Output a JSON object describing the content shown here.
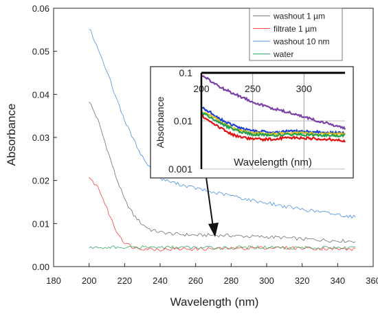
{
  "chart_data": [
    {
      "type": "line",
      "xlabel": "Wavelength (nm)",
      "ylabel": "Absorbance",
      "xlim": [
        180,
        360
      ],
      "ylim": [
        0,
        0.06
      ],
      "xticks": [
        "180",
        "200",
        "220",
        "240",
        "260",
        "280",
        "300",
        "320",
        "340",
        "360"
      ],
      "yticks": [
        "0.00",
        "0.01",
        "0.02",
        "0.03",
        "0.04",
        "0.05",
        "0.06"
      ],
      "grid": false,
      "legend_position": "top-right",
      "series": [
        {
          "name": "washout 1 µm",
          "color": "#6e6e6e",
          "x": [
            200,
            205,
            210,
            215,
            220,
            225,
            230,
            235,
            240,
            245,
            250,
            260,
            270,
            280,
            290,
            300,
            310,
            320,
            330,
            340,
            350
          ],
          "y": [
            0.0385,
            0.034,
            0.0275,
            0.021,
            0.0155,
            0.012,
            0.0098,
            0.0085,
            0.008,
            0.0077,
            0.0075,
            0.0073,
            0.0073,
            0.0072,
            0.007,
            0.0069,
            0.0067,
            0.0064,
            0.0062,
            0.006,
            0.0059
          ]
        },
        {
          "name": "filtrate 1 µm",
          "color": "#ff4040",
          "x": [
            200,
            205,
            210,
            215,
            220,
            225,
            230,
            240,
            250,
            260,
            280,
            300,
            320,
            340,
            350
          ],
          "y": [
            0.0205,
            0.0185,
            0.0135,
            0.0085,
            0.0055,
            0.0045,
            0.0042,
            0.004,
            0.0041,
            0.0041,
            0.0042,
            0.0044,
            0.0043,
            0.0041,
            0.004
          ]
        },
        {
          "name": "washout 10 nm",
          "color": "#4a90e2",
          "x": [
            200,
            205,
            210,
            215,
            220,
            225,
            230,
            235,
            240,
            245,
            250,
            260,
            270,
            280,
            290,
            300,
            310,
            320,
            330,
            340,
            350
          ],
          "y": [
            0.0555,
            0.0505,
            0.0455,
            0.0395,
            0.034,
            0.0295,
            0.0255,
            0.0225,
            0.0205,
            0.0198,
            0.0192,
            0.0182,
            0.0172,
            0.0165,
            0.0155,
            0.0148,
            0.014,
            0.0133,
            0.0127,
            0.0121,
            0.0115
          ]
        },
        {
          "name": "water",
          "color": "#33aa66",
          "x": [
            200,
            210,
            220,
            240,
            260,
            280,
            300,
            320,
            340,
            350
          ],
          "y": [
            0.0044,
            0.0045,
            0.0044,
            0.0045,
            0.0044,
            0.0044,
            0.0045,
            0.0044,
            0.0044,
            0.0043
          ]
        }
      ]
    },
    {
      "type": "line",
      "log_y": true,
      "xlabel": "Wavelength  (nm)",
      "ylabel": "Absorbance",
      "xlim": [
        200,
        340
      ],
      "ylim": [
        0.001,
        0.1
      ],
      "xticks": [
        "200",
        "250",
        "300"
      ],
      "yticks": [
        "0.1",
        "0.01",
        "0.001"
      ],
      "grid": true,
      "series": [
        {
          "color": "#7b3fa8",
          "x": [
            200,
            210,
            220,
            230,
            240,
            250,
            260,
            270,
            280,
            290,
            300,
            310,
            320,
            330,
            340
          ],
          "y": [
            0.088,
            0.065,
            0.048,
            0.038,
            0.031,
            0.025,
            0.021,
            0.018,
            0.016,
            0.014,
            0.012,
            0.0105,
            0.0092,
            0.008,
            0.007
          ]
        },
        {
          "color": "#1a3fd8",
          "x": [
            200,
            210,
            220,
            230,
            240,
            250,
            260,
            270,
            280,
            290,
            300,
            310,
            320,
            330,
            340
          ],
          "y": [
            0.019,
            0.0145,
            0.0105,
            0.0082,
            0.0068,
            0.0062,
            0.006,
            0.0059,
            0.006,
            0.0061,
            0.006,
            0.0059,
            0.0058,
            0.0057,
            0.0056
          ]
        },
        {
          "color": "#e0c020",
          "x": [
            200,
            210,
            220,
            230,
            240,
            250,
            260,
            270,
            280,
            290,
            300,
            310,
            320,
            330,
            340
          ],
          "y": [
            0.016,
            0.0125,
            0.0092,
            0.0072,
            0.0061,
            0.0056,
            0.0054,
            0.0054,
            0.0055,
            0.0056,
            0.0055,
            0.0054,
            0.0054,
            0.0053,
            0.0053
          ]
        },
        {
          "color": "#22a050",
          "x": [
            200,
            210,
            220,
            230,
            240,
            250,
            260,
            270,
            280,
            290,
            300,
            310,
            320,
            330,
            340
          ],
          "y": [
            0.015,
            0.0115,
            0.0086,
            0.0068,
            0.0058,
            0.0053,
            0.0051,
            0.0051,
            0.0052,
            0.0052,
            0.0052,
            0.0051,
            0.0051,
            0.005,
            0.005
          ]
        },
        {
          "color": "#e01010",
          "x": [
            200,
            210,
            220,
            230,
            240,
            250,
            260,
            270,
            280,
            290,
            300,
            310,
            320,
            330,
            340
          ],
          "y": [
            0.013,
            0.0095,
            0.0068,
            0.0052,
            0.0045,
            0.0042,
            0.0041,
            0.0042,
            0.0044,
            0.0045,
            0.0044,
            0.0043,
            0.0042,
            0.0041,
            0.0038
          ]
        }
      ]
    }
  ]
}
